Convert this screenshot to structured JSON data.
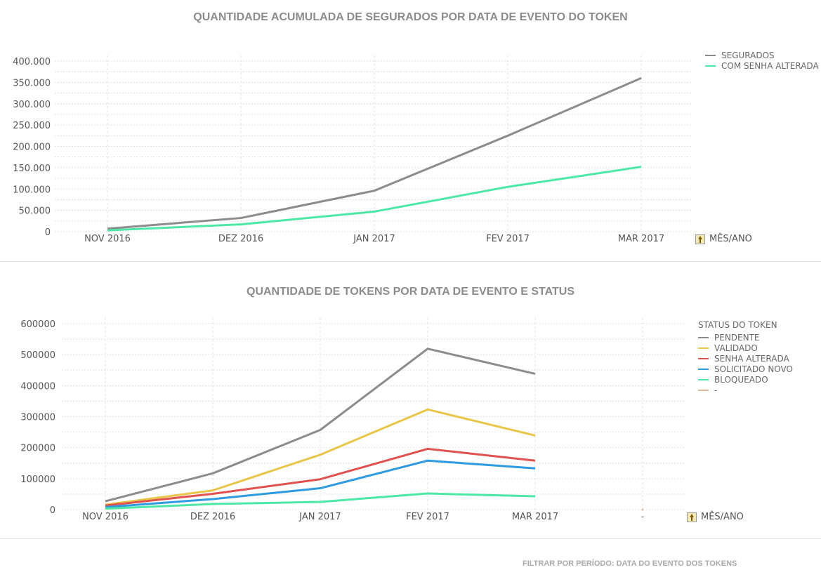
{
  "footer": "FILTRAR POR PERÍODO: DATA DO EVENTO DOS TOKENS",
  "chart_data": [
    {
      "type": "line",
      "title": "QUANTIDADE ACUMULADA DE SEGURADOS POR DATA DE EVENTO DO TOKEN",
      "x": [
        "NOV 2016",
        "DEZ 2016",
        "JAN 2017",
        "FEV 2017",
        "MAR 2017"
      ],
      "xlabel": "MÊS/ANO",
      "ylabel": "",
      "ylim": [
        0,
        400000
      ],
      "yticks": [
        "0",
        "50.000",
        "100.000",
        "150.000",
        "200.000",
        "250.000",
        "300.000",
        "350.000",
        "400.000"
      ],
      "grid": true,
      "legend_position": "top-right",
      "series": [
        {
          "name": "SEGURADOS",
          "color": "#8c8c8c",
          "values": [
            7000,
            32000,
            96000,
            225000,
            360000
          ]
        },
        {
          "name": "COM SENHA ALTERADA",
          "color": "#4de8a6",
          "values": [
            3000,
            17000,
            47000,
            105000,
            152000
          ]
        }
      ]
    },
    {
      "type": "line",
      "title": "QUANTIDADE DE TOKENS POR DATA DE EVENTO E STATUS",
      "x": [
        "NOV 2016",
        "DEZ 2016",
        "JAN 2017",
        "FEV 2017",
        "MAR 2017",
        "-"
      ],
      "xlabel": "MÊS/ANO",
      "ylabel": "",
      "ylim": [
        0,
        600000
      ],
      "yticks": [
        "0",
        "100000",
        "200000",
        "300000",
        "400000",
        "500000",
        "600000"
      ],
      "grid": true,
      "legend_title": "STATUS DO TOKEN",
      "legend_position": "top-right",
      "series": [
        {
          "name": "PENDENTE",
          "color": "#8c8c8c",
          "values": [
            27000,
            117000,
            257000,
            519000,
            438000,
            null
          ]
        },
        {
          "name": "VALIDADO",
          "color": "#e8c64a",
          "values": [
            16000,
            62000,
            177000,
            323000,
            239000,
            null
          ]
        },
        {
          "name": "SENHA ALTERADA",
          "color": "#e0524f",
          "values": [
            13000,
            51000,
            98000,
            196000,
            158000,
            null
          ]
        },
        {
          "name": "SOLICITADO NOVO",
          "color": "#2e9be0",
          "values": [
            8000,
            34000,
            69000,
            158000,
            133000,
            null
          ]
        },
        {
          "name": "BLOQUEADO",
          "color": "#4de8a6",
          "values": [
            3000,
            18000,
            25000,
            52000,
            43000,
            null
          ]
        },
        {
          "name": "-",
          "color": "#e0b89a",
          "values": [
            null,
            null,
            null,
            null,
            null,
            0
          ]
        }
      ]
    }
  ]
}
